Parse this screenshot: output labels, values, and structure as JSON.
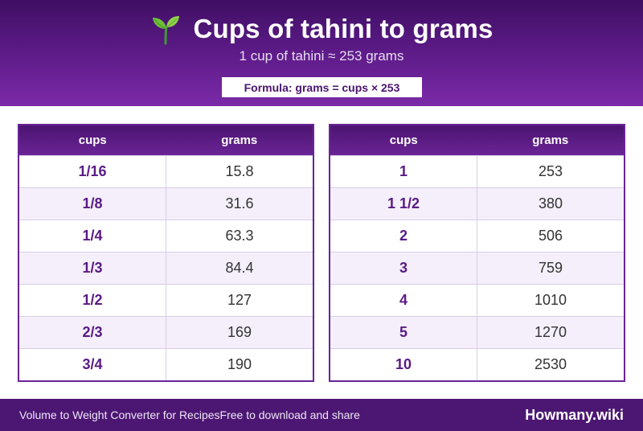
{
  "header": {
    "icon": "sprout-icon",
    "title": "Cups of tahini to grams",
    "subtitle": "1 cup of tahini ≈ 253 grams",
    "formula": "Formula: grams = cups × 253"
  },
  "tables": [
    {
      "headers": [
        "cups",
        "grams"
      ],
      "rows": [
        [
          "1/16",
          "15.8"
        ],
        [
          "1/8",
          "31.6"
        ],
        [
          "1/4",
          "63.3"
        ],
        [
          "1/3",
          "84.4"
        ],
        [
          "1/2",
          "127"
        ],
        [
          "2/3",
          "169"
        ],
        [
          "3/4",
          "190"
        ]
      ]
    },
    {
      "headers": [
        "cups",
        "grams"
      ],
      "rows": [
        [
          "1",
          "253"
        ],
        [
          "1 1/2",
          "380"
        ],
        [
          "2",
          "506"
        ],
        [
          "3",
          "759"
        ],
        [
          "4",
          "1010"
        ],
        [
          "5",
          "1270"
        ],
        [
          "10",
          "2530"
        ]
      ]
    }
  ],
  "footer": {
    "left": "Volume to Weight Converter for Recipes",
    "middle": "Free to download and share",
    "brand": "Howmany.wiki"
  },
  "colors": {
    "primary": "#5a1a85",
    "header_dark": "#3f0f63",
    "footer": "#4c1773",
    "row_alt": "#f4effa"
  }
}
